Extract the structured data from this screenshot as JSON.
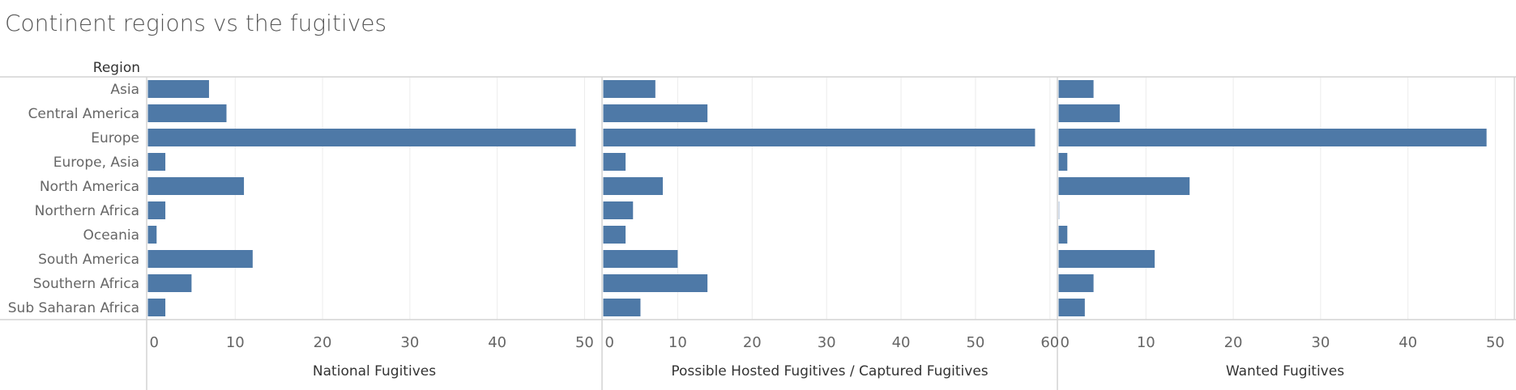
{
  "title": "Continent regions vs the fugitives",
  "chart_data": {
    "type": "bar",
    "orientation": "horizontal",
    "title": "Continent regions vs the fugitives",
    "category_header": "Region",
    "categories": [
      "Asia",
      "Central America",
      "Europe",
      "Europe, Asia",
      "North America",
      "Northern Africa",
      "Oceania",
      "South America",
      "Southern Africa",
      "Sub Saharan Africa"
    ],
    "bar_color": "#4e79a7",
    "grid": true,
    "panels": [
      {
        "xlabel": "National Fugitives",
        "xlim": [
          0,
          52
        ],
        "ticks": [
          0,
          10,
          20,
          30,
          40,
          50
        ],
        "values": [
          7,
          9,
          49,
          2,
          11,
          2,
          1,
          12,
          5,
          2
        ]
      },
      {
        "xlabel": "Possible Hosted Fugitives / Captured Fugitives",
        "xlim": [
          0,
          61
        ],
        "ticks": [
          0,
          10,
          20,
          30,
          40,
          50,
          60
        ],
        "values": [
          7,
          14,
          58,
          3,
          8,
          4,
          3,
          10,
          14,
          5
        ]
      },
      {
        "xlabel": "Wanted Fugitives",
        "xlim": [
          0,
          52
        ],
        "ticks": [
          0,
          10,
          20,
          30,
          40,
          50
        ],
        "values": [
          4,
          7,
          49,
          1,
          15,
          0,
          1,
          11,
          4,
          3
        ]
      }
    ]
  }
}
